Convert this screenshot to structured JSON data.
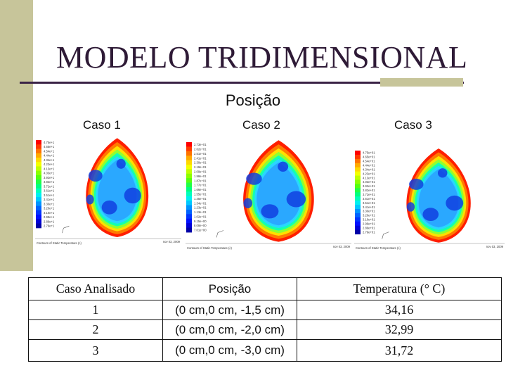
{
  "slide": {
    "title": "MODELO TRIDIMENSIONAL",
    "subtitle": "Posição"
  },
  "cases": [
    {
      "label": "Caso 1",
      "colorbar_ticks": [
        "4.75e+1",
        "4.65e+1",
        "4.54e+1",
        "4.44e+1",
        "4.34e+1",
        "4.23e+1",
        "4.13e+1",
        "4.03e+1",
        "3.92e+1",
        "3.82e+1",
        "3.72e+1",
        "3.61e+1",
        "3.51e+1",
        "3.41e+1",
        "3.30e+1",
        "3.20e+1",
        "3.10e+1",
        "2.99e+1",
        "2.89e+1",
        "2.79e+1"
      ],
      "footer_left": "Contours of Static Temperature (c)",
      "footer_right": "nov 03, 2009"
    },
    {
      "label": "Caso 2",
      "colorbar_ticks": [
        "2.73e+01",
        "2.62e+01",
        "2.51e+01",
        "2.41e+01",
        "2.30e+01",
        "2.19e+01",
        "2.09e+01",
        "1.98e+01",
        "1.87e+01",
        "1.77e+01",
        "1.66e+01",
        "1.55e+01",
        "1.45e+01",
        "1.34e+01",
        "1.23e+01",
        "1.13e+01",
        "1.02e+01",
        "9.15e+00",
        "8.08e+00",
        "7.01e+00"
      ],
      "footer_left": "Contours of Static Temperature (c)",
      "footer_right": "nov 03, 2009"
    },
    {
      "label": "Caso 3",
      "colorbar_ticks": [
        "4.75e+01",
        "4.65e+01",
        "4.54e+01",
        "4.44e+01",
        "4.34e+01",
        "4.23e+01",
        "4.13e+01",
        "4.03e+01",
        "3.92e+01",
        "3.82e+01",
        "3.72e+01",
        "3.61e+01",
        "3.51e+01",
        "3.41e+01",
        "3.30e+01",
        "3.20e+01",
        "3.10e+01",
        "2.99e+01",
        "2.89e+01",
        "2.79e+01"
      ],
      "footer_left": "Contours of Static Temperature (c)",
      "footer_right": "nov 03, 2009"
    }
  ],
  "table": {
    "headers": [
      "Caso Analisado",
      "Posição",
      "Temperatura (° C)"
    ],
    "rows": [
      {
        "caso": "1",
        "posicao": "(0 cm,0 cm, -1,5 cm)",
        "temperatura": "34,16"
      },
      {
        "caso": "2",
        "posicao": "(0 cm,0 cm, -2,0 cm)",
        "temperatura": "32,99"
      },
      {
        "caso": "3",
        "posicao": "(0 cm,0 cm, -3,0 cm)",
        "temperatura": "31,72"
      }
    ]
  },
  "colors": {
    "accent_bar": "#c7c59a",
    "title_color": "#2e1a36",
    "contour_outer": "#ff1e00",
    "contour_inner": "#2aa8ff"
  }
}
